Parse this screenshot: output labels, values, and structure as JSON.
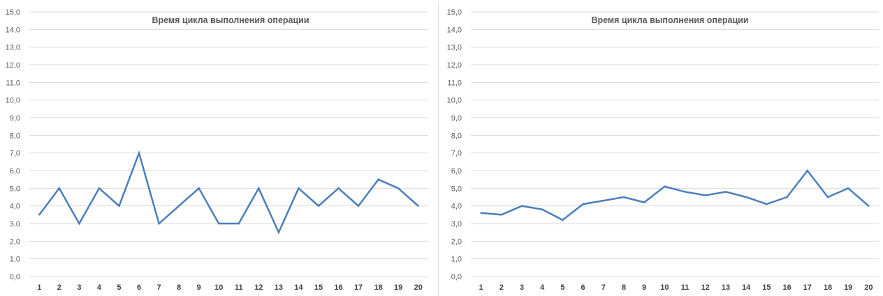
{
  "chart_data": [
    {
      "type": "line",
      "title": "Время цикла выполнения операции",
      "xlabel": "",
      "ylabel": "",
      "categories": [
        "1",
        "2",
        "3",
        "4",
        "5",
        "6",
        "7",
        "8",
        "9",
        "10",
        "11",
        "12",
        "13",
        "14",
        "15",
        "16",
        "17",
        "18",
        "19",
        "20"
      ],
      "y_ticks": [
        "0,0",
        "1,0",
        "2,0",
        "3,0",
        "4,0",
        "5,0",
        "6,0",
        "7,0",
        "8,0",
        "9,0",
        "10,0",
        "11,0",
        "12,0",
        "13,0",
        "14,0",
        "15,0"
      ],
      "ylim": [
        0,
        15
      ],
      "grid": true,
      "legend": "none",
      "series": [
        {
          "values": [
            3.5,
            5.0,
            3.0,
            5.0,
            4.0,
            7.0,
            3.0,
            4.0,
            5.0,
            3.0,
            3.0,
            5.0,
            2.5,
            5.0,
            4.0,
            5.0,
            4.0,
            5.5,
            5.0,
            4.0
          ],
          "color": "#4a7ebb"
        }
      ]
    },
    {
      "type": "line",
      "title": "Время цикла выполнения операции",
      "xlabel": "",
      "ylabel": "",
      "categories": [
        "1",
        "2",
        "3",
        "4",
        "5",
        "6",
        "7",
        "8",
        "9",
        "10",
        "11",
        "12",
        "13",
        "14",
        "15",
        "16",
        "17",
        "18",
        "19",
        "20"
      ],
      "y_ticks": [
        "0,0",
        "1,0",
        "2,0",
        "3,0",
        "4,0",
        "5,0",
        "6,0",
        "7,0",
        "8,0",
        "9,0",
        "10,0",
        "11,0",
        "12,0",
        "13,0",
        "14,0",
        "15,0"
      ],
      "ylim": [
        0,
        15
      ],
      "grid": true,
      "legend": "none",
      "series": [
        {
          "values": [
            3.6,
            3.5,
            4.0,
            3.8,
            3.2,
            4.1,
            4.3,
            4.5,
            4.2,
            5.1,
            4.8,
            4.6,
            4.8,
            4.5,
            4.1,
            4.5,
            6.0,
            4.5,
            5.0,
            4.0
          ],
          "color": "#4a7ebb"
        }
      ]
    }
  ]
}
